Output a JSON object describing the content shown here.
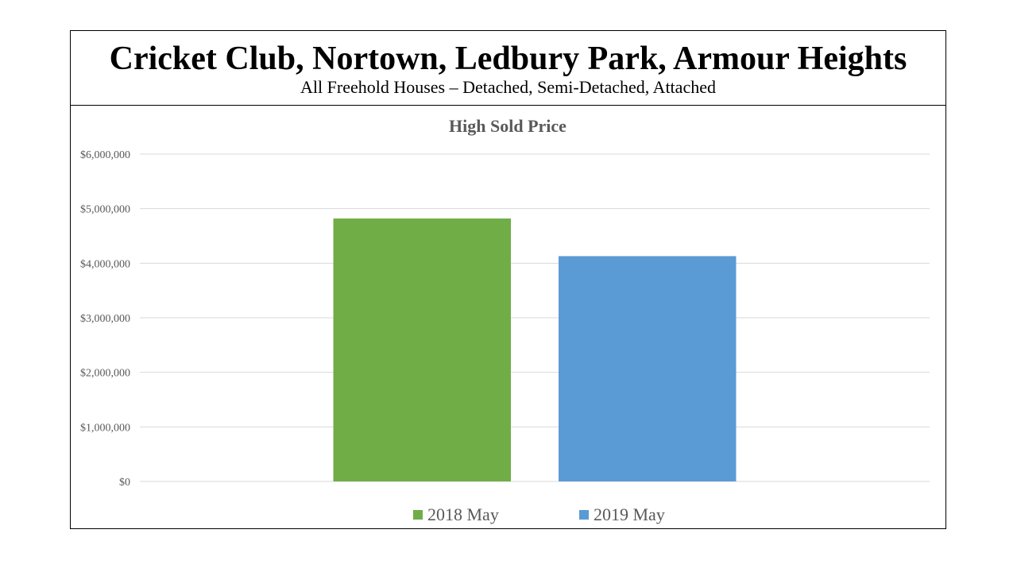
{
  "header": {
    "title": "Cricket Club, Nortown, Ledbury Park, Armour Heights",
    "subtitle": "All Freehold Houses – Detached, Semi-Detached, Attached"
  },
  "chart_data": {
    "type": "bar",
    "title": "High Sold Price",
    "xlabel": "",
    "ylabel": "",
    "categories": [
      ""
    ],
    "series": [
      {
        "name": "2018 May",
        "values": [
          4820000
        ],
        "color": "#70AD47"
      },
      {
        "name": "2019 May",
        "values": [
          4130000
        ],
        "color": "#5B9BD5"
      }
    ],
    "ylim": [
      0,
      6000000
    ],
    "yticks": [
      0,
      1000000,
      2000000,
      3000000,
      4000000,
      5000000,
      6000000
    ],
    "ytick_labels": [
      "$0",
      "$1,000,000",
      "$2,000,000",
      "$3,000,000",
      "$4,000,000",
      "$5,000,000",
      "$6,000,000"
    ],
    "grid": true,
    "legend": "bottom"
  }
}
